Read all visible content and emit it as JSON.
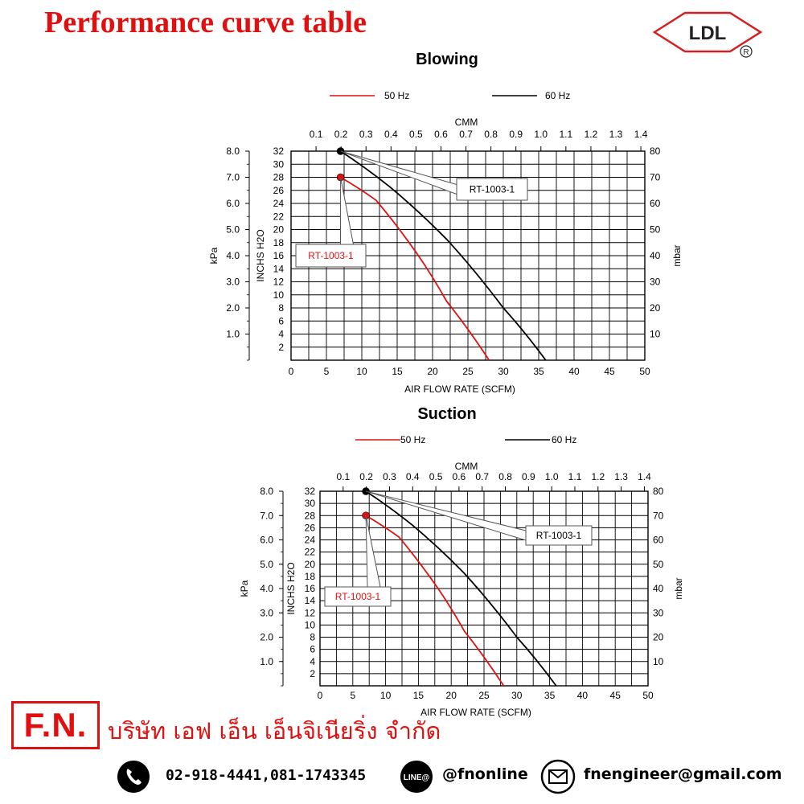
{
  "page": {
    "title": "Performance curve table",
    "logo_text": "LDL",
    "logo_mark": "R",
    "colors": {
      "title": "#e01010",
      "hz50": "#e01010",
      "hz60": "#000000",
      "logo": "#d42020"
    }
  },
  "chart_data": [
    {
      "type": "line",
      "id": "blowing",
      "title": "Blowing",
      "xlabel": "AIR FLOW RATE (SCFM)",
      "xlabel_top": "CMM",
      "ylabel_left": "kPa",
      "ylabel_inner": "INCHS H2O",
      "ylabel_right": "mbar",
      "xlim": [
        0,
        50
      ],
      "ylim": [
        0,
        32
      ],
      "x_ticks": [
        0,
        5,
        10,
        15,
        20,
        25,
        30,
        35,
        40,
        45,
        50
      ],
      "y_ticks": [
        2,
        4,
        6,
        8,
        10,
        12,
        14,
        16,
        18,
        20,
        22,
        24,
        26,
        28,
        30,
        32
      ],
      "top_ticks": [
        "0.1",
        "0.2",
        "0.3",
        "0.4",
        "0.5",
        "0.6",
        "0.7",
        "0.8",
        "0.9",
        "1.0",
        "1.1",
        "1.2",
        "1.3",
        "1.4"
      ],
      "kpa_ticks": [
        "8.0",
        "7.0",
        "6.0",
        "5.0",
        "4.0",
        "3.0",
        "2.0",
        "1.0"
      ],
      "mbar_ticks": [
        "80",
        "70",
        "60",
        "50",
        "40",
        "30",
        "20",
        "10"
      ],
      "grid": true,
      "legend_position": "top",
      "series": [
        {
          "name": "50 Hz",
          "color": "#e01010",
          "points": [
            [
              7,
              28
            ],
            [
              12,
              24.5
            ],
            [
              18,
              16
            ],
            [
              22,
              9
            ],
            [
              28,
              0
            ]
          ],
          "label": "RT-1003-1"
        },
        {
          "name": "60 Hz",
          "color": "#000000",
          "points": [
            [
              7,
              32
            ],
            [
              14,
              26.5
            ],
            [
              22,
              18.5
            ],
            [
              30,
              8
            ],
            [
              36,
              0
            ]
          ],
          "label": "RT-1003-1"
        }
      ]
    },
    {
      "type": "line",
      "id": "suction",
      "title": "Suction",
      "xlabel": "AIR FLOW RATE (SCFM)",
      "xlabel_top": "CMM",
      "ylabel_left": "kPa",
      "ylabel_inner": "INCHS H2O",
      "ylabel_right": "mbar",
      "xlim": [
        0,
        50
      ],
      "ylim": [
        0,
        32
      ],
      "x_ticks": [
        0,
        5,
        10,
        15,
        20,
        25,
        30,
        35,
        40,
        45,
        50
      ],
      "y_ticks": [
        2,
        4,
        6,
        8,
        10,
        12,
        14,
        16,
        18,
        20,
        22,
        24,
        26,
        28,
        30,
        32
      ],
      "top_ticks": [
        "0.1",
        "0.2",
        "0.3",
        "0.4",
        "0.5",
        "0.6",
        "0.7",
        "0.8",
        "0.9",
        "1.0",
        "1.1",
        "1.2",
        "1.3",
        "1.4"
      ],
      "kpa_ticks": [
        "8.0",
        "7.0",
        "6.0",
        "5.0",
        "4.0",
        "3.0",
        "2.0",
        "1.0"
      ],
      "mbar_ticks": [
        "80",
        "70",
        "60",
        "50",
        "40",
        "30",
        "20",
        "10"
      ],
      "grid": true,
      "legend_position": "top",
      "series": [
        {
          "name": "50 Hz",
          "color": "#e01010",
          "points": [
            [
              7,
              28
            ],
            [
              12,
              24.5
            ],
            [
              18,
              16
            ],
            [
              22,
              9
            ],
            [
              28,
              0
            ]
          ],
          "label": "RT-1003-1"
        },
        {
          "name": "60 Hz",
          "color": "#000000",
          "points": [
            [
              7,
              32
            ],
            [
              14,
              26.5
            ],
            [
              22,
              18.5
            ],
            [
              30,
              8
            ],
            [
              36,
              0
            ]
          ],
          "label": "RT-1003-1"
        }
      ]
    }
  ],
  "footer": {
    "brand": "F.N.",
    "company_name": "บริษัท เอฟ เอ็น เอ็นจิเนียริ่ง จำกัด",
    "phone_icon": "phone-icon",
    "phone": "02-918-4441,081-1743345",
    "line_icon": "line-icon",
    "line_badge": "LINE@",
    "line_id": "@fnonline",
    "email_icon": "mail-icon",
    "email": "fnengineer@gmail.com"
  }
}
